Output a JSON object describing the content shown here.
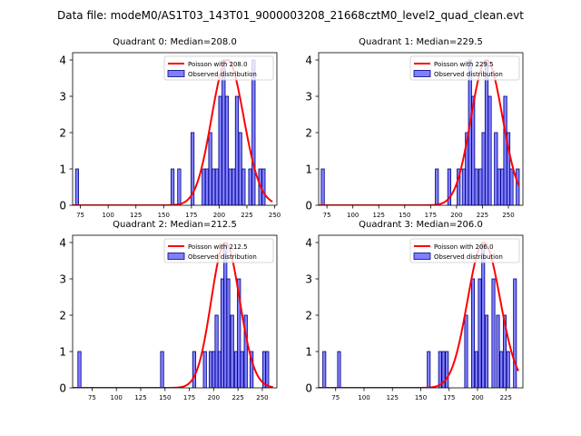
{
  "chart_data": {
    "suptitle": "Data file: modeM0/AS1T03_143T01_9000003208_21668cztM0_level2_quad_clean.evt",
    "panels": [
      {
        "type": "bar",
        "title": "Quadrant 0: Median=208.0",
        "median": 208.0,
        "xlim": [
          68,
          252
        ],
        "ylim": [
          0,
          4.2
        ],
        "xticks": [
          75,
          100,
          125,
          150,
          175,
          200,
          225,
          250
        ],
        "yticks": [
          0,
          1,
          2,
          3,
          4
        ],
        "bin_width": 2.8,
        "bins": [
          {
            "x": 72,
            "count": 1
          },
          {
            "x": 158,
            "count": 1
          },
          {
            "x": 164,
            "count": 1
          },
          {
            "x": 176,
            "count": 2
          },
          {
            "x": 186,
            "count": 1
          },
          {
            "x": 189,
            "count": 1
          },
          {
            "x": 192,
            "count": 2
          },
          {
            "x": 195,
            "count": 1
          },
          {
            "x": 198,
            "count": 1
          },
          {
            "x": 201,
            "count": 3
          },
          {
            "x": 204,
            "count": 4
          },
          {
            "x": 207,
            "count": 3
          },
          {
            "x": 210,
            "count": 1
          },
          {
            "x": 213,
            "count": 1
          },
          {
            "x": 216,
            "count": 3
          },
          {
            "x": 219,
            "count": 2
          },
          {
            "x": 222,
            "count": 1
          },
          {
            "x": 228,
            "count": 1
          },
          {
            "x": 231,
            "count": 4
          },
          {
            "x": 237,
            "count": 1
          },
          {
            "x": 240,
            "count": 1
          }
        ],
        "legend": [
          {
            "label": "Poisson with 208.0",
            "kind": "line",
            "color": "#ff0000"
          },
          {
            "label": "Observed distribution",
            "kind": "patch",
            "color": "#7f7fff"
          }
        ]
      },
      {
        "type": "bar",
        "title": "Quadrant 1: Median=229.5",
        "median": 229.5,
        "xlim": [
          67,
          264
        ],
        "ylim": [
          0,
          4.2
        ],
        "xticks": [
          75,
          100,
          125,
          150,
          175,
          200,
          225,
          250
        ],
        "yticks": [
          0,
          1,
          2,
          3,
          4
        ],
        "bin_width": 3.0,
        "bins": [
          {
            "x": 71,
            "count": 1
          },
          {
            "x": 181,
            "count": 1
          },
          {
            "x": 193,
            "count": 1
          },
          {
            "x": 202,
            "count": 1
          },
          {
            "x": 207,
            "count": 1
          },
          {
            "x": 210,
            "count": 2
          },
          {
            "x": 213,
            "count": 4
          },
          {
            "x": 216,
            "count": 3
          },
          {
            "x": 219,
            "count": 1
          },
          {
            "x": 223,
            "count": 1
          },
          {
            "x": 226,
            "count": 2
          },
          {
            "x": 229,
            "count": 4
          },
          {
            "x": 232,
            "count": 3
          },
          {
            "x": 238,
            "count": 2
          },
          {
            "x": 241,
            "count": 1
          },
          {
            "x": 244,
            "count": 1
          },
          {
            "x": 247,
            "count": 3
          },
          {
            "x": 250,
            "count": 2
          },
          {
            "x": 253,
            "count": 1
          },
          {
            "x": 259,
            "count": 1
          }
        ],
        "legend": [
          {
            "label": "Poisson with 229.5",
            "kind": "line",
            "color": "#ff0000"
          },
          {
            "label": "Observed distribution",
            "kind": "patch",
            "color": "#7f7fff"
          }
        ]
      },
      {
        "type": "bar",
        "title": "Quadrant 2: Median=212.5",
        "median": 212.5,
        "xlim": [
          55,
          265
        ],
        "ylim": [
          0,
          4.2
        ],
        "xticks": [
          75,
          100,
          125,
          150,
          175,
          200,
          225,
          250
        ],
        "yticks": [
          0,
          1,
          2,
          3,
          4
        ],
        "bin_width": 3.2,
        "bins": [
          {
            "x": 62,
            "count": 1
          },
          {
            "x": 147,
            "count": 1
          },
          {
            "x": 180,
            "count": 1
          },
          {
            "x": 191,
            "count": 1
          },
          {
            "x": 197,
            "count": 1
          },
          {
            "x": 200,
            "count": 1
          },
          {
            "x": 203,
            "count": 2
          },
          {
            "x": 206,
            "count": 1
          },
          {
            "x": 209,
            "count": 3
          },
          {
            "x": 212,
            "count": 4
          },
          {
            "x": 215,
            "count": 3
          },
          {
            "x": 219,
            "count": 2
          },
          {
            "x": 223,
            "count": 1
          },
          {
            "x": 226,
            "count": 3
          },
          {
            "x": 229,
            "count": 1
          },
          {
            "x": 233,
            "count": 2
          },
          {
            "x": 239,
            "count": 1
          },
          {
            "x": 252,
            "count": 1
          },
          {
            "x": 255,
            "count": 1
          }
        ],
        "legend": [
          {
            "label": "Poisson with 212.5",
            "kind": "line",
            "color": "#ff0000"
          },
          {
            "label": "Observed distribution",
            "kind": "patch",
            "color": "#7f7fff"
          }
        ]
      },
      {
        "type": "bar",
        "title": "Quadrant 3: Median=206.0",
        "median": 206.0,
        "xlim": [
          60,
          240
        ],
        "ylim": [
          0,
          4.2
        ],
        "xticks": [
          75,
          100,
          125,
          150,
          175,
          200,
          225
        ],
        "yticks": [
          0,
          1,
          2,
          3,
          4
        ],
        "bin_width": 2.6,
        "bins": [
          {
            "x": 65,
            "count": 1
          },
          {
            "x": 78,
            "count": 1
          },
          {
            "x": 157,
            "count": 1
          },
          {
            "x": 167,
            "count": 1
          },
          {
            "x": 170,
            "count": 1
          },
          {
            "x": 173,
            "count": 1
          },
          {
            "x": 190,
            "count": 2
          },
          {
            "x": 196,
            "count": 3
          },
          {
            "x": 199,
            "count": 1
          },
          {
            "x": 202,
            "count": 3
          },
          {
            "x": 205,
            "count": 4
          },
          {
            "x": 208,
            "count": 2
          },
          {
            "x": 214,
            "count": 3
          },
          {
            "x": 218,
            "count": 2
          },
          {
            "x": 221,
            "count": 1
          },
          {
            "x": 224,
            "count": 2
          },
          {
            "x": 227,
            "count": 1
          },
          {
            "x": 233,
            "count": 3
          }
        ],
        "legend": [
          {
            "label": "Poisson with 206.0",
            "kind": "line",
            "color": "#ff0000"
          },
          {
            "label": "Observed distribution",
            "kind": "patch",
            "color": "#7f7fff"
          }
        ]
      }
    ]
  }
}
